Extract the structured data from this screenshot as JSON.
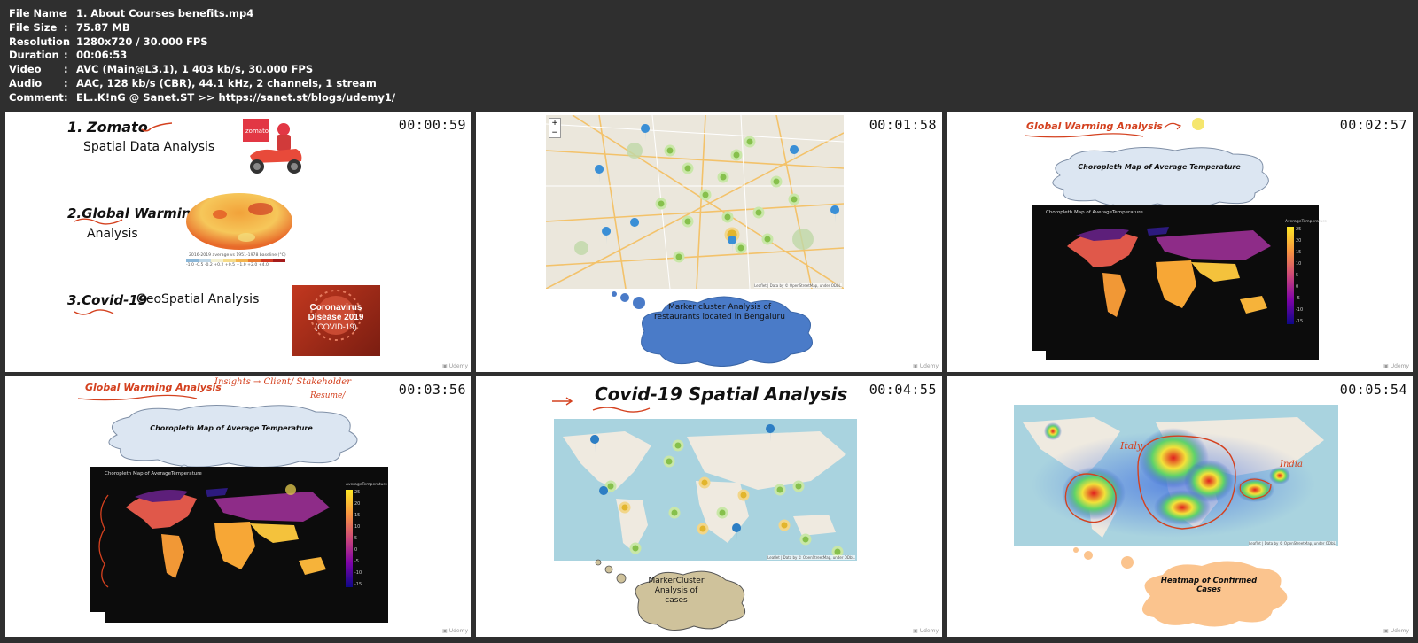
{
  "metadata": {
    "rows": [
      {
        "key": "File Name",
        "value": "1. About Courses benefits.mp4"
      },
      {
        "key": "File Size",
        "value": "75.87 MB"
      },
      {
        "key": "Resolution",
        "value": "1280x720 / 30.000 FPS"
      },
      {
        "key": "Duration",
        "value": "00:06:53"
      },
      {
        "key": "Video",
        "value": "AVC (Main@L3.1), 1 403 kb/s, 30.000 FPS"
      },
      {
        "key": "Audio",
        "value": "AAC, 128 kb/s (CBR), 44.1 kHz, 2 channels, 1 stream"
      },
      {
        "key": "Comment",
        "value": "EL..K!nG @ Sanet.ST  >> https://sanet.st/blogs/udemy1/"
      }
    ],
    "separator": ":"
  },
  "frames": [
    {
      "timestamp": "00:00:59",
      "item1_num": "1.",
      "item1_title": "Zomato",
      "item1_sub": "Spatial Data Analysis",
      "zomato_logo": "zomato",
      "item2_title": "2.Global Warming",
      "item2_sub": "Analysis",
      "legend_caption": "2016-2019 average vs 1951-1978 baseline (°C)",
      "legend_ticks": "-1.0  -0.5  -0.2  +0.2  +0.5  +1.0  +2.0  +4.0",
      "item3_title": "3.Covid-19",
      "item3_sub": "GeoSpatial Analysis",
      "covid_line1": "Coronavirus",
      "covid_line2": "Disease 2019",
      "covid_line3": "(COVID-19)"
    },
    {
      "timestamp": "00:01:58",
      "zoom_in": "+",
      "zoom_out": "−",
      "attribution": "Leaflet | Data by © OpenStreetMap, under ODbL.",
      "cloud_text": "Marker cluster Analysis of restaurants located in Bengaluru"
    },
    {
      "timestamp": "00:02:57",
      "title": "Global Warming Analysis",
      "cloud_text": "Choropleth  Map of Average Temperature",
      "map_title": "Choropleth Map of AverageTemperature",
      "colorbar_title": "AverageTemperature",
      "colorbar_ticks": [
        "25",
        "20",
        "15",
        "10",
        "5",
        "0",
        "-5",
        "-10",
        "-15"
      ]
    },
    {
      "timestamp": "00:03:56",
      "title": "Global Warming Analysis",
      "annotation1": "Insights → Client/ Stakeholder",
      "annotation2": "Resume/",
      "cloud_text": "Choropleth  Map of Average Temperature",
      "map_title": "Choropleth Map of AverageTemperature",
      "colorbar_title": "AverageTemperature",
      "colorbar_ticks": [
        "25",
        "20",
        "15",
        "10",
        "5",
        "0",
        "-5",
        "-10",
        "-15"
      ]
    },
    {
      "timestamp": "00:04:55",
      "title": "Covid-19 Spatial Analysis",
      "attribution": "Leaflet | Data by © OpenStreetMap, under ODbL.",
      "cloud_text": "MarkerCluster Analysis of cases"
    },
    {
      "timestamp": "00:05:54",
      "annotation_italy": "Italy",
      "annotation_india": "India",
      "attribution": "Leaflet | Data by © OpenStreetMap, under ODbL.",
      "cloud_text": "Heatmap of Confirmed Cases"
    }
  ],
  "colors": {
    "background": "#2f2f2f",
    "annotation_red": "#d4411f",
    "cloud_blue_fill": "#dce6f2",
    "cloud_dark_blue": "#4a7bc8",
    "cloud_tan": "#cfc29b",
    "cloud_orange": "#fbc48e"
  }
}
